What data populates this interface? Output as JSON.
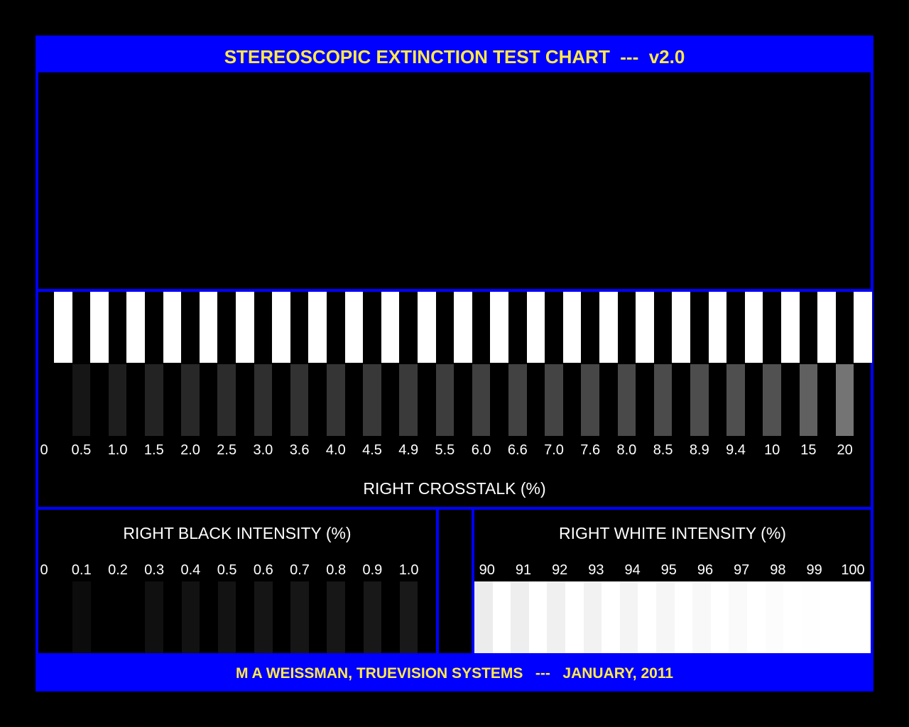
{
  "title": "STEREOSCOPIC EXTINCTION TEST CHART  ---  v2.0",
  "footer": "M A WEISSMAN, TRUEVISION SYSTEMS   ---   JANUARY, 2011",
  "crosstalk": {
    "caption": "RIGHT CROSSTALK (%)",
    "labels": [
      "0",
      "0.5",
      "1.0",
      "1.5",
      "2.0",
      "2.5",
      "3.0",
      "3.6",
      "4.0",
      "4.5",
      "4.9",
      "5.5",
      "6.0",
      "6.6",
      "7.0",
      "7.6",
      "8.0",
      "8.5",
      "8.9",
      "9.4",
      "10",
      "15",
      "20"
    ],
    "gray_levels": [
      0,
      22,
      30,
      35,
      40,
      44,
      47,
      50,
      53,
      56,
      58,
      61,
      64,
      66,
      68,
      71,
      73,
      75,
      77,
      79,
      81,
      96,
      116
    ]
  },
  "black_intensity": {
    "caption": "RIGHT BLACK INTENSITY (%)",
    "labels": [
      "0",
      "0.1",
      "0.2",
      "0.3",
      "0.4",
      "0.5",
      "0.6",
      "0.7",
      "0.8",
      "0.9",
      "1.0"
    ],
    "gray_levels": [
      0,
      12,
      0,
      16,
      18,
      19,
      21,
      22,
      23,
      24,
      25
    ]
  },
  "white_intensity": {
    "caption": "RIGHT WHITE INTENSITY (%)",
    "labels": [
      "90",
      "91",
      "92",
      "93",
      "94",
      "95",
      "96",
      "97",
      "98",
      "99",
      "100"
    ],
    "gray_levels": [
      236,
      238,
      240,
      242,
      244,
      246,
      248,
      250,
      252,
      254,
      255
    ]
  },
  "colors": {
    "frame": "#0000ff",
    "title_text": "#ffe94a",
    "background": "#000000",
    "white": "#ffffff"
  }
}
